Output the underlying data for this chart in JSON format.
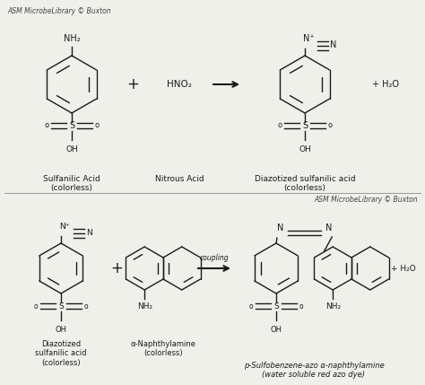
{
  "background_color": "#f0f0eb",
  "watermark_top": "ASM MicrobeLibrary © Buxton",
  "watermark_bottom": "ASM MicrobeLibrary © Buxton",
  "reaction1": {
    "reactant1_label": "Sulfanilic Acid\n(colorless)",
    "reactant2_label": "Nitrous Acid",
    "product1_label": "Diazotized sulfanilic acid\n(colorless)",
    "reagent": "HNO₂",
    "byproduct": "+ H₂O"
  },
  "reaction2": {
    "reactant1_label": "Diazotized\nsulfanilic acid\n(colorless)",
    "reactant2_label": "α-Naphthylamine\n(colorless)",
    "product1_label": "p-Sulfobenzene-azo α-naphthylamine\n(water soluble red azo dye)",
    "byproduct": "+ H₂O",
    "arrow_label": "coupling"
  },
  "font_color": "#1a1a1a",
  "line_color": "#1a1a1a",
  "font_size_label": 6.5,
  "font_size_chem": 7.5,
  "font_size_watermark": 5.5
}
